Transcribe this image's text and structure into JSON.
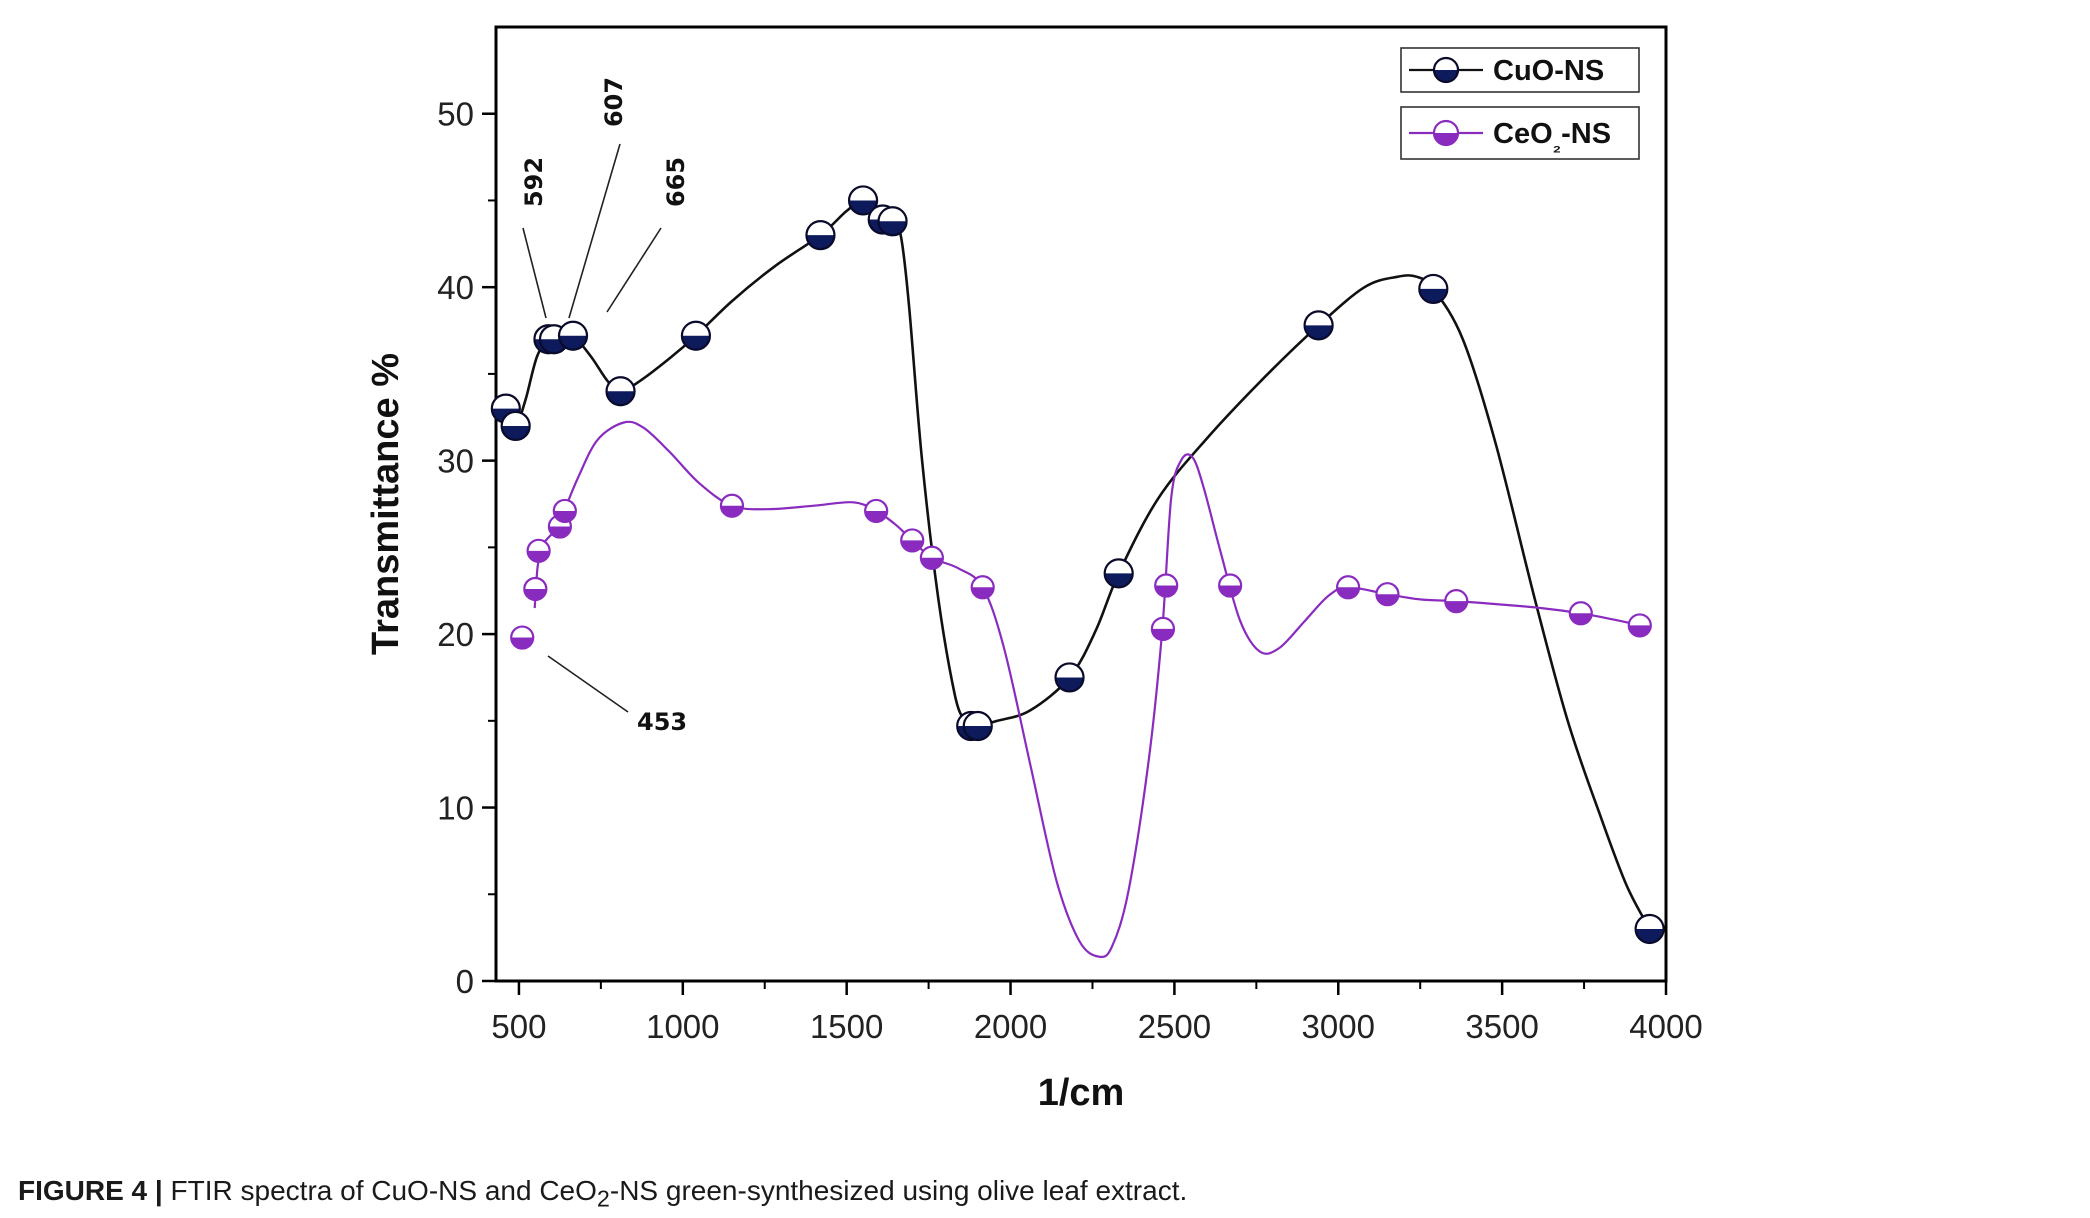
{
  "chart_data": {
    "type": "scatter",
    "xlabel": "1/cm",
    "ylabel": "Transmittance %",
    "xlim": [
      430,
      4000
    ],
    "ylim": [
      0,
      55
    ],
    "x_ticks": [
      500,
      1000,
      1500,
      2000,
      2500,
      3000,
      3500,
      4000
    ],
    "y_ticks": [
      0,
      10,
      20,
      30,
      40,
      50
    ],
    "grid": false,
    "legend_position": "top-right",
    "series": [
      {
        "name": "CuO-NS",
        "color": "#0d1b5c",
        "points": [
          [
            460,
            33
          ],
          [
            490,
            32
          ],
          [
            590,
            37
          ],
          [
            607,
            37
          ],
          [
            665,
            37.2
          ],
          [
            810,
            34
          ],
          [
            1040,
            37.2
          ],
          [
            1420,
            43
          ],
          [
            1550,
            45
          ],
          [
            1610,
            43.9
          ],
          [
            1640,
            43.8
          ],
          [
            1880,
            14.7
          ],
          [
            1900,
            14.7
          ],
          [
            2180,
            17.5
          ],
          [
            2330,
            23.5
          ],
          [
            2940,
            37.8
          ],
          [
            3290,
            39.9
          ],
          [
            3950,
            3
          ]
        ],
        "curve": [
          [
            455,
            33
          ],
          [
            470,
            33.3
          ],
          [
            490,
            32
          ],
          [
            520,
            33.5
          ],
          [
            555,
            36
          ],
          [
            590,
            37
          ],
          [
            607,
            37
          ],
          [
            635,
            37.1
          ],
          [
            665,
            37.2
          ],
          [
            720,
            36
          ],
          [
            770,
            34.6
          ],
          [
            810,
            34
          ],
          [
            870,
            34.6
          ],
          [
            960,
            35.9
          ],
          [
            1040,
            37.2
          ],
          [
            1150,
            39.2
          ],
          [
            1280,
            41.2
          ],
          [
            1420,
            43
          ],
          [
            1500,
            44.4
          ],
          [
            1550,
            45
          ],
          [
            1590,
            44.3
          ],
          [
            1615,
            43.9
          ],
          [
            1640,
            43.8
          ],
          [
            1665,
            43
          ],
          [
            1690,
            39
          ],
          [
            1730,
            30
          ],
          [
            1780,
            22
          ],
          [
            1830,
            16.5
          ],
          [
            1860,
            15
          ],
          [
            1880,
            14.7
          ],
          [
            1900,
            14.7
          ],
          [
            1960,
            15
          ],
          [
            2060,
            15.6
          ],
          [
            2180,
            17.5
          ],
          [
            2260,
            20.2
          ],
          [
            2330,
            23.5
          ],
          [
            2450,
            27.8
          ],
          [
            2600,
            31.3
          ],
          [
            2780,
            34.9
          ],
          [
            2940,
            37.8
          ],
          [
            3080,
            40
          ],
          [
            3180,
            40.6
          ],
          [
            3240,
            40.6
          ],
          [
            3290,
            39.9
          ],
          [
            3380,
            37
          ],
          [
            3480,
            31
          ],
          [
            3600,
            22
          ],
          [
            3700,
            15
          ],
          [
            3800,
            9.5
          ],
          [
            3880,
            5.5
          ],
          [
            3950,
            3
          ]
        ]
      },
      {
        "name": "CeO₂-NS",
        "color": "#8a2bbf",
        "points": [
          [
            510,
            19.8
          ],
          [
            550,
            22.6
          ],
          [
            560,
            24.8
          ],
          [
            625,
            26.2
          ],
          [
            640,
            27.1
          ],
          [
            1150,
            27.4
          ],
          [
            1590,
            27.1
          ],
          [
            1700,
            25.4
          ],
          [
            1760,
            24.4
          ],
          [
            1915,
            22.7
          ],
          [
            2465,
            20.3
          ],
          [
            2475,
            22.8
          ],
          [
            2670,
            22.8
          ],
          [
            3030,
            22.7
          ],
          [
            3150,
            22.3
          ],
          [
            3360,
            21.9
          ],
          [
            3740,
            21.2
          ],
          [
            3920,
            20.5
          ]
        ],
        "curve": [
          [
            548,
            21.5
          ],
          [
            552,
            22.6
          ],
          [
            558,
            24
          ],
          [
            575,
            25.2
          ],
          [
            610,
            26
          ],
          [
            640,
            27.2
          ],
          [
            680,
            29
          ],
          [
            740,
            31.2
          ],
          [
            820,
            32.2
          ],
          [
            880,
            31.9
          ],
          [
            960,
            30.5
          ],
          [
            1050,
            28.7
          ],
          [
            1150,
            27.4
          ],
          [
            1260,
            27.2
          ],
          [
            1400,
            27.4
          ],
          [
            1520,
            27.6
          ],
          [
            1590,
            27.1
          ],
          [
            1650,
            26.3
          ],
          [
            1700,
            25.4
          ],
          [
            1760,
            24.4
          ],
          [
            1840,
            23.8
          ],
          [
            1915,
            22.7
          ],
          [
            1980,
            19.2
          ],
          [
            2060,
            12.5
          ],
          [
            2140,
            5.8
          ],
          [
            2210,
            2.3
          ],
          [
            2270,
            1.4
          ],
          [
            2310,
            2
          ],
          [
            2360,
            5.2
          ],
          [
            2420,
            12.5
          ],
          [
            2462,
            20
          ],
          [
            2490,
            27.8
          ],
          [
            2520,
            30
          ],
          [
            2555,
            30.2
          ],
          [
            2590,
            28.4
          ],
          [
            2640,
            24.8
          ],
          [
            2700,
            20.8
          ],
          [
            2760,
            19
          ],
          [
            2820,
            19.2
          ],
          [
            2900,
            20.8
          ],
          [
            2970,
            22.2
          ],
          [
            3030,
            22.7
          ],
          [
            3150,
            22.3
          ],
          [
            3250,
            22
          ],
          [
            3360,
            21.9
          ],
          [
            3500,
            21.7
          ],
          [
            3620,
            21.5
          ],
          [
            3740,
            21.2
          ],
          [
            3850,
            20.8
          ],
          [
            3920,
            20.5
          ]
        ]
      }
    ],
    "annotations": [
      {
        "text": "592",
        "x": 592
      },
      {
        "text": "607",
        "x": 607
      },
      {
        "text": "665",
        "x": 665
      },
      {
        "text": "453",
        "x": 453
      }
    ]
  },
  "caption": {
    "label": "FIGURE 4 |",
    "text_before_sub": "FTIR spectra of CuO-NS and CeO",
    "subscript": "2",
    "text_after_sub": "-NS green-synthesized using olive leaf extract."
  }
}
